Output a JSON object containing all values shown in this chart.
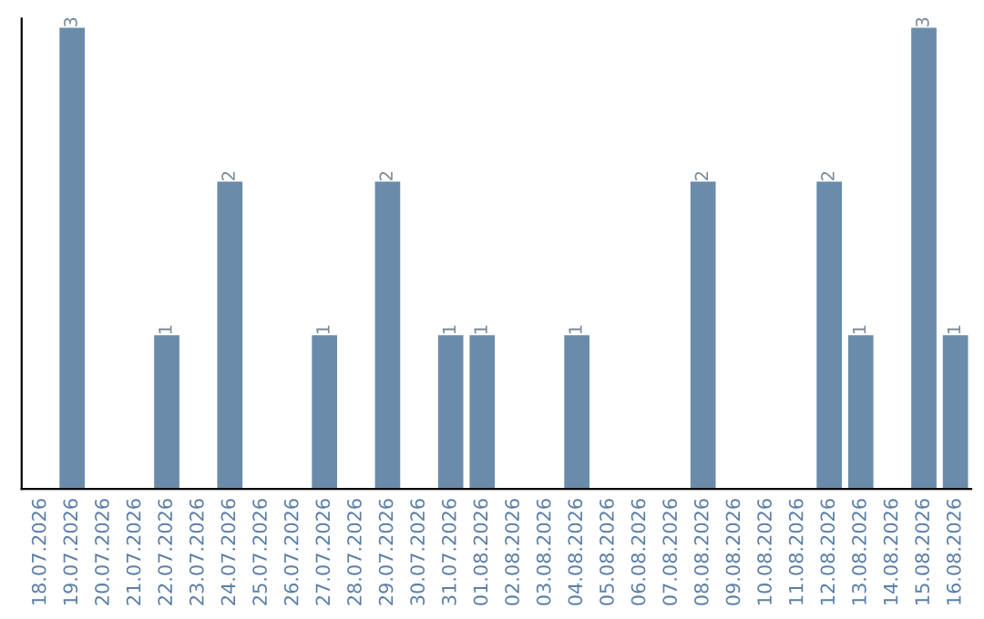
{
  "chart_data": {
    "type": "bar",
    "categories": [
      "18.07.2026",
      "19.07.2026",
      "20.07.2026",
      "21.07.2026",
      "22.07.2026",
      "23.07.2026",
      "24.07.2026",
      "25.07.2026",
      "26.07.2026",
      "27.07.2026",
      "28.07.2026",
      "29.07.2026",
      "30.07.2026",
      "31.07.2026",
      "01.08.2026",
      "02.08.2026",
      "03.08.2026",
      "04.08.2026",
      "05.08.2026",
      "06.08.2026",
      "07.08.2026",
      "08.08.2026",
      "09.08.2026",
      "10.08.2026",
      "11.08.2026",
      "12.08.2026",
      "13.08.2026",
      "14.08.2026",
      "15.08.2026",
      "16.08.2026"
    ],
    "values": [
      0,
      3,
      0,
      0,
      1,
      0,
      2,
      0,
      0,
      1,
      0,
      2,
      0,
      1,
      1,
      0,
      0,
      1,
      0,
      0,
      0,
      2,
      0,
      0,
      0,
      2,
      1,
      0,
      3,
      1
    ],
    "value_labels": [
      null,
      "3",
      null,
      null,
      "1",
      null,
      "2",
      null,
      null,
      "1",
      null,
      "2",
      null,
      "1",
      "1",
      null,
      null,
      "1",
      null,
      null,
      null,
      "2",
      null,
      null,
      null,
      "2",
      "1",
      null,
      "3",
      "1"
    ],
    "color": "#6a8caa",
    "grid": false
  }
}
